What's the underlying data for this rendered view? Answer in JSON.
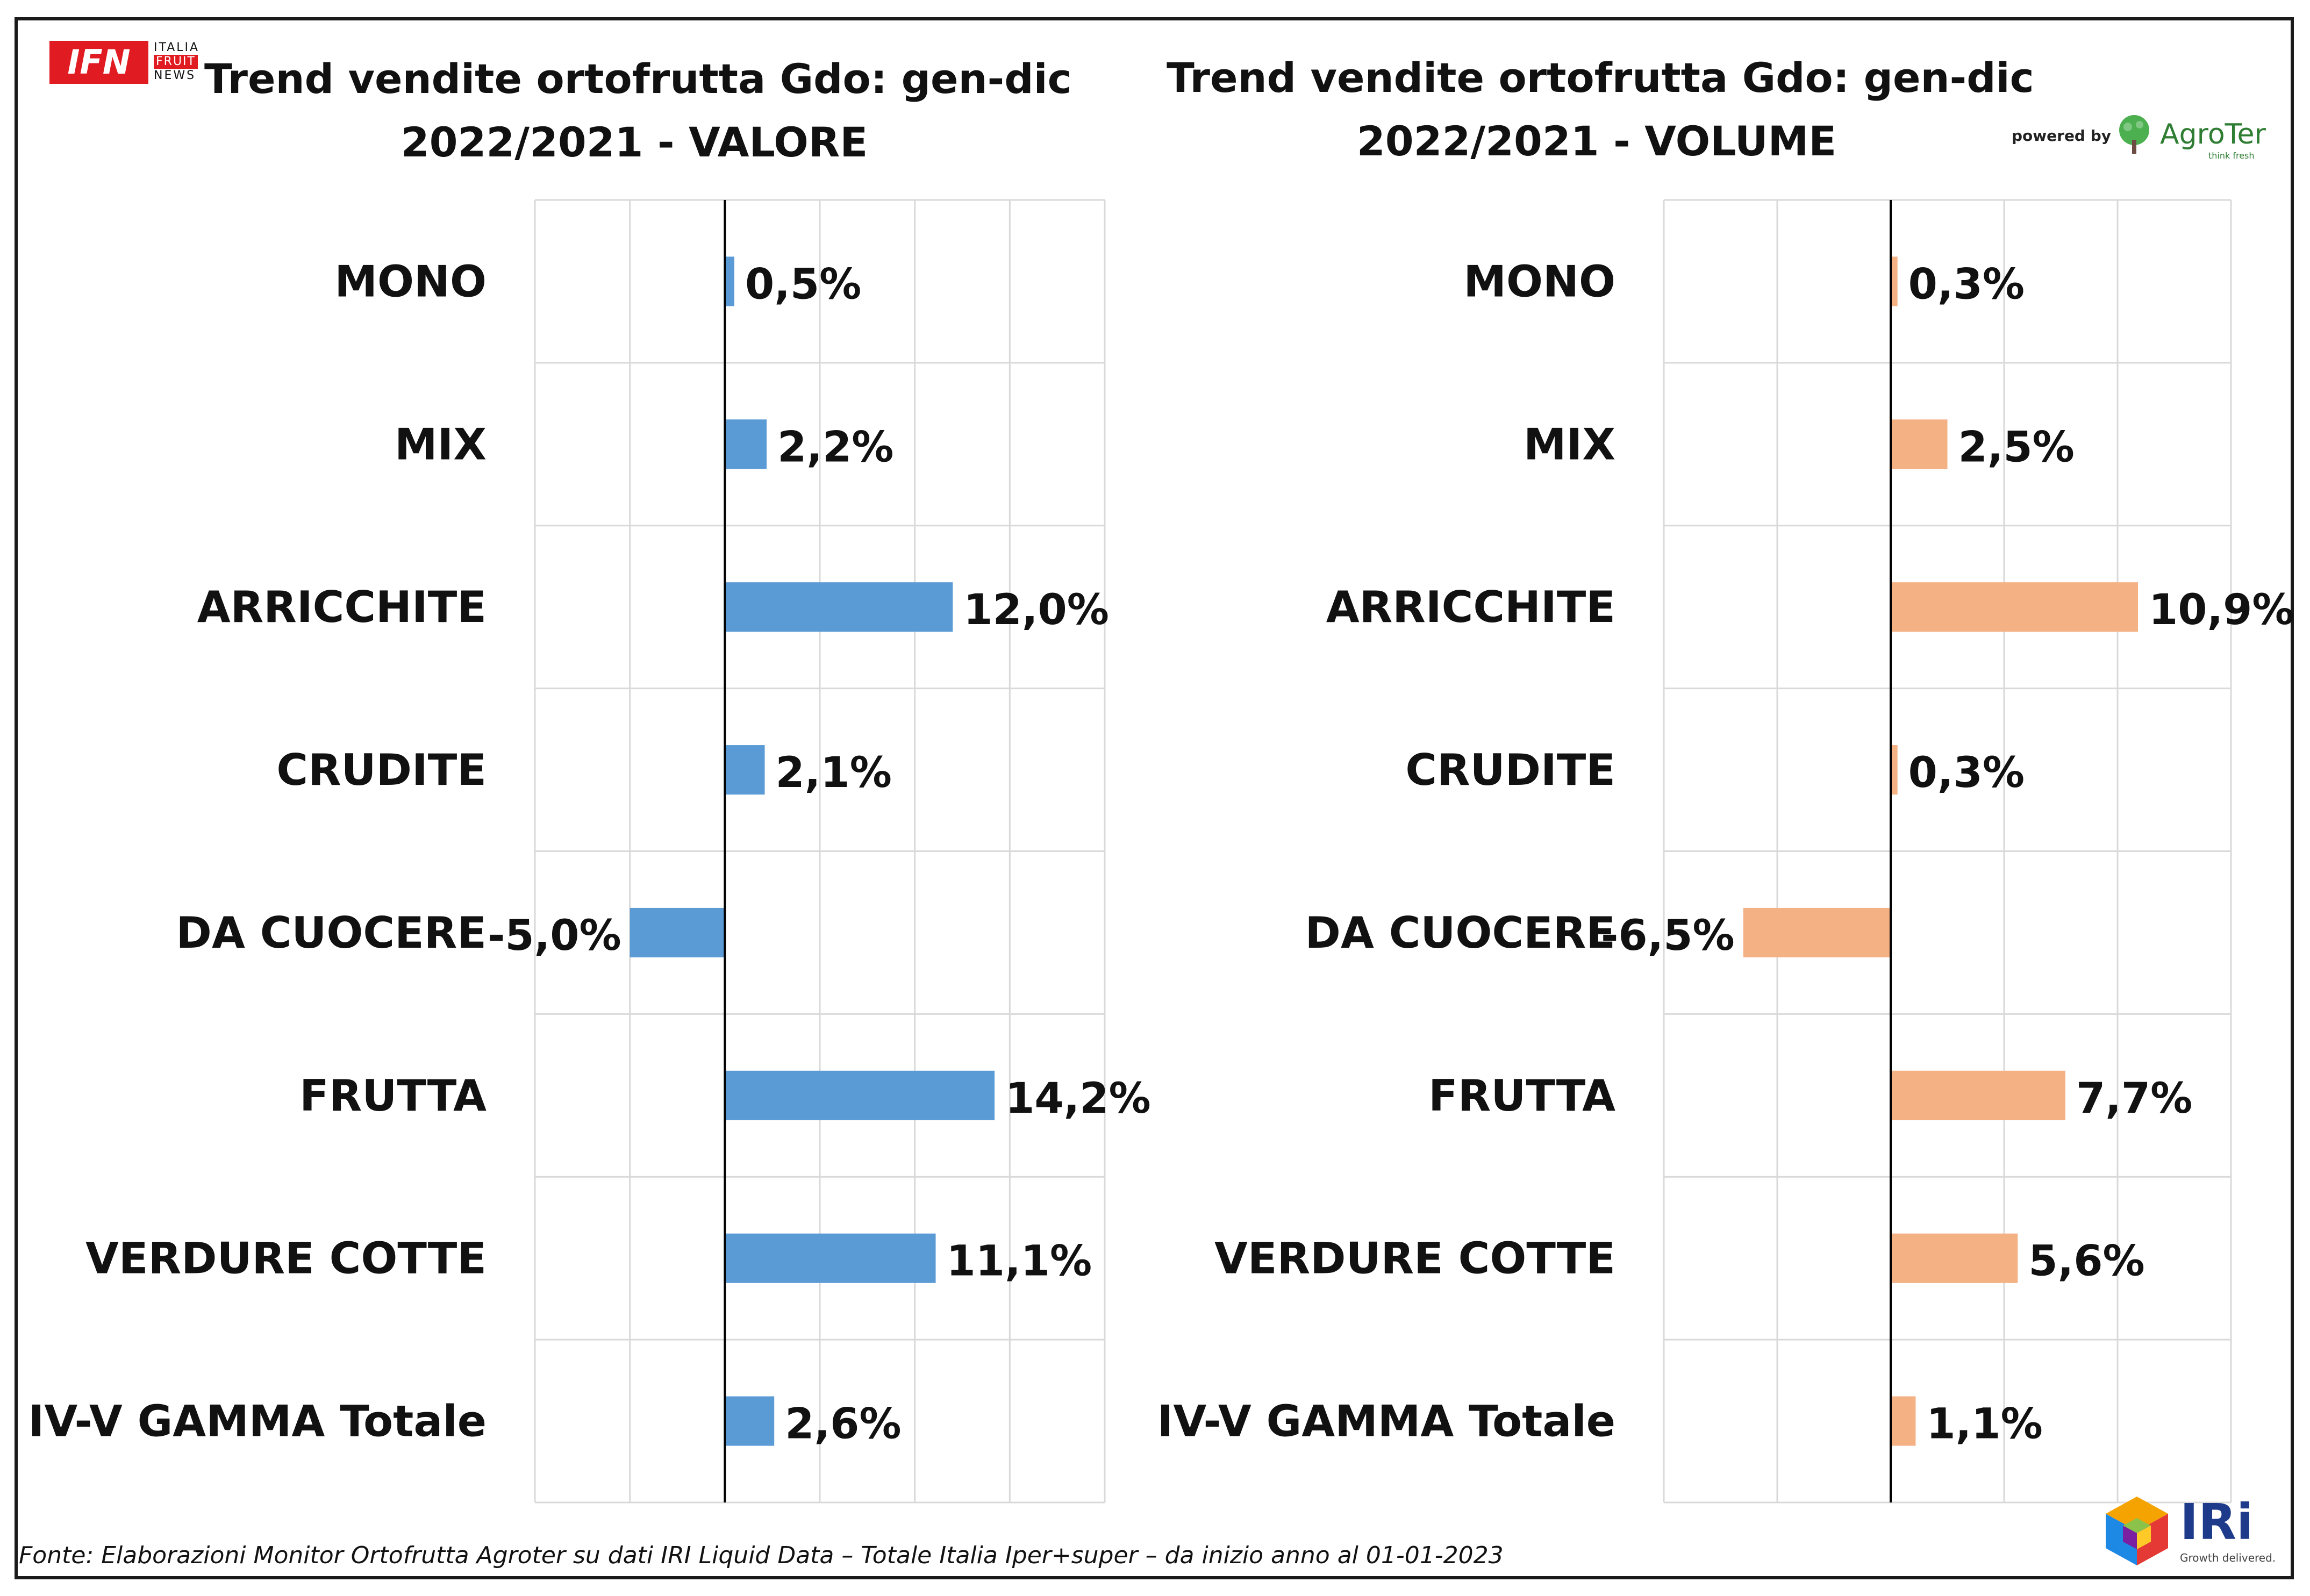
{
  "branding": {
    "ifn_logo_text": "IFN",
    "ifn_side_line1": "ITALIA",
    "ifn_side_line2": "FRUIT",
    "ifn_side_line3": "NEWS",
    "powered_by": "powered by",
    "agroter_name": "AgroTer",
    "agroter_tagline": "think fresh",
    "iri_name": "IRi",
    "iri_tagline": "Growth delivered."
  },
  "footer": {
    "source": "Fonte: Elaborazioni Monitor Ortofrutta Agroter su dati IRI Liquid Data – Totale Italia Iper+super –  da inizio anno al 01-01-2023"
  },
  "colors": {
    "valore_bar": "#5b9bd5",
    "volume_bar": "#f4b183",
    "gridline": "#d9d9d9",
    "axis": "#000000",
    "text": "#111111"
  },
  "chart_data": [
    {
      "type": "bar",
      "orientation": "horizontal",
      "title_line1": "Trend vendite ortofrutta Gdo: gen-dic",
      "title_line2": "2022/2021 - VALORE",
      "categories": [
        "MONO",
        "MIX",
        "ARRICCHITE",
        "CRUDITE",
        "DA CUOCERE",
        "FRUTTA",
        "VERDURE COTTE",
        "IV-V GAMMA Totale"
      ],
      "values": [
        0.5,
        2.2,
        12.0,
        2.1,
        -5.0,
        14.2,
        11.1,
        2.6
      ],
      "data_labels": [
        "0,5%",
        "2,2%",
        "12,0%",
        "2,1%",
        "-5,0%",
        "14,2%",
        "11,1%",
        "2,6%"
      ],
      "xlim": [
        -10,
        20
      ],
      "grid": true,
      "legend": "none"
    },
    {
      "type": "bar",
      "orientation": "horizontal",
      "title_line1": "Trend vendite ortofrutta Gdo: gen-dic",
      "title_line2": "2022/2021 - VOLUME",
      "categories": [
        "MONO",
        "MIX",
        "ARRICCHITE",
        "CRUDITE",
        "DA CUOCERE",
        "FRUTTA",
        "VERDURE COTTE",
        "IV-V GAMMA Totale"
      ],
      "values": [
        0.3,
        2.5,
        10.9,
        0.3,
        -6.5,
        7.7,
        5.6,
        1.1
      ],
      "data_labels": [
        "0,3%",
        "2,5%",
        "10,9%",
        "0,3%",
        "-6,5%",
        "7,7%",
        "5,6%",
        "1,1%"
      ],
      "xlim": [
        -10,
        15
      ],
      "grid": true,
      "legend": "none"
    }
  ]
}
